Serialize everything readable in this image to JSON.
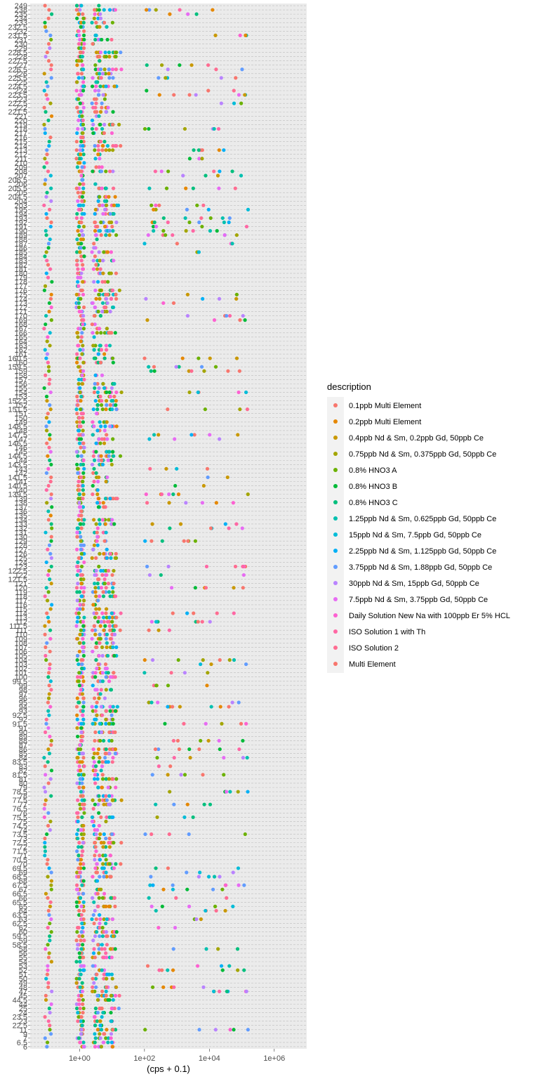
{
  "chart_data": {
    "type": "scatter",
    "xlabel": "(cps + 0.1)",
    "ylabel": "",
    "x_scale": "log10",
    "xlim": [
      0.03,
      10000000
    ],
    "x_ticks": [
      "1e+00",
      "1e+02",
      "1e+04",
      "1e+06"
    ],
    "grid": "dashed horizontal gridlines at each mass",
    "legend_title": "description",
    "legend_position": "right",
    "y_categories": [
      "6",
      "6.5",
      "7",
      "9",
      "11",
      "22.5",
      "23",
      "23.5",
      "24",
      "25",
      "44",
      "44.5",
      "45",
      "47",
      "48",
      "49",
      "50",
      "51",
      "52",
      "53",
      "54",
      "55",
      "56",
      "58",
      "58.5",
      "59",
      "59.5",
      "60",
      "62",
      "62.5",
      "63",
      "63.5",
      "64",
      "65",
      "65.5",
      "66",
      "66.5",
      "67",
      "67.5",
      "68",
      "68.5",
      "69",
      "69.5",
      "70",
      "70.5",
      "71",
      "71.5",
      "72",
      "72.5",
      "73",
      "73.5",
      "74",
      "74.5",
      "75",
      "75.5",
      "76",
      "76.5",
      "77",
      "77.5",
      "78",
      "78.5",
      "79",
      "80",
      "81",
      "81.5",
      "82",
      "83",
      "83.5",
      "84",
      "85",
      "86",
      "87",
      "88",
      "89",
      "90",
      "91",
      "91.5",
      "92",
      "92.5",
      "93",
      "94",
      "95",
      "96",
      "97",
      "98",
      "99",
      "99.5",
      "100",
      "101",
      "102",
      "103",
      "104",
      "105",
      "106",
      "107",
      "108",
      "109",
      "110",
      "111",
      "111.5",
      "112",
      "113",
      "114",
      "115",
      "116",
      "117",
      "118",
      "119",
      "120",
      "121",
      "121.5",
      "122",
      "122.5",
      "123",
      "124",
      "125",
      "126",
      "127",
      "128",
      "129",
      "130",
      "131",
      "132",
      "133",
      "134",
      "135",
      "136",
      "137",
      "138",
      "139",
      "139.5",
      "140",
      "140.5",
      "141",
      "141.5",
      "142",
      "143",
      "143.5",
      "144",
      "144.5",
      "145",
      "146",
      "146.5",
      "147",
      "147.5",
      "148",
      "148.5",
      "149",
      "150",
      "151",
      "151.5",
      "152",
      "152.5",
      "153",
      "154",
      "155",
      "156",
      "157",
      "158",
      "159",
      "159.5",
      "160",
      "160.5",
      "161",
      "162",
      "163",
      "164",
      "165",
      "166",
      "167",
      "168",
      "169",
      "170",
      "171",
      "172",
      "173",
      "174",
      "175",
      "176",
      "177",
      "178",
      "179",
      "180",
      "181",
      "182",
      "183",
      "184",
      "185",
      "186",
      "187",
      "188",
      "189",
      "190",
      "191",
      "192",
      "193",
      "194",
      "195",
      "203",
      "204",
      "204.5",
      "205",
      "205.5",
      "206",
      "206.5",
      "207",
      "208",
      "209",
      "210",
      "211",
      "212",
      "213",
      "214",
      "215",
      "216",
      "217",
      "218",
      "219",
      "220",
      "221",
      "221.5",
      "222",
      "222.5",
      "223",
      "223.5",
      "224",
      "224.5",
      "225",
      "225.5",
      "226",
      "226.5",
      "227",
      "227.5",
      "228",
      "228.5",
      "229",
      "230",
      "231",
      "231.5",
      "232",
      "232.5",
      "233",
      "234",
      "235",
      "238",
      "249"
    ],
    "y_tick_labels": [
      "6",
      "6.5",
      "7",
      "9",
      "11",
      "22.5",
      "23",
      "23.5",
      "24",
      "25",
      "44",
      "44.5",
      "45",
      "47",
      "48",
      "49",
      "50",
      "51",
      "52",
      "53",
      "54",
      "55",
      "56",
      "58",
      "58.5",
      "59",
      "59.5",
      "60",
      "62",
      "62.5",
      "63",
      "63.5",
      "64",
      "65",
      "65.5",
      "66",
      "66.5",
      "67",
      "67.5",
      "68",
      "68.5",
      "69",
      "69.5",
      "70",
      "70.5",
      "71",
      "71.5",
      "72",
      "72.5",
      "73",
      "73.5",
      "74",
      "74.5",
      "75",
      "75.5",
      "76",
      "76.5",
      "77",
      "77.5",
      "78",
      "78.5",
      "79",
      "80",
      "81",
      "81.5",
      "82",
      "83",
      "83.5",
      "84",
      "85",
      "86",
      "87",
      "88",
      "89",
      "90",
      "91",
      "91.5",
      "92",
      "92.5",
      "93",
      "94",
      "95",
      "96",
      "97",
      "98",
      "99",
      "99.5",
      "100",
      "101",
      "102",
      "103",
      "104",
      "105",
      "106",
      "107",
      "108",
      "109",
      "110",
      "111",
      "111.5",
      "112",
      "113",
      "114",
      "115",
      "116",
      "117",
      "118",
      "119",
      "120",
      "121",
      "121.5",
      "122",
      "122.5",
      "123",
      "124",
      "125",
      "126",
      "127",
      "128",
      "129",
      "130",
      "131",
      "132",
      "133",
      "134",
      "135",
      "136",
      "137",
      "138",
      "139",
      "139.5",
      "140",
      "140.5",
      "141",
      "141.5",
      "142",
      "143",
      "143.5",
      "144",
      "144.5",
      "145",
      "146",
      "146.5",
      "147",
      "147.5",
      "148",
      "148.5",
      "149",
      "150",
      "151",
      "151.5",
      "152",
      "152.5",
      "153",
      "154",
      "155",
      "156",
      "157",
      "158",
      "159",
      "159.5",
      "160",
      "160.5",
      "161",
      "162",
      "163",
      "164",
      "165",
      "166",
      "167",
      "168",
      "169",
      "170",
      "171",
      "172",
      "173",
      "174",
      "175",
      "176",
      "177",
      "178",
      "179",
      "180",
      "181",
      "182",
      "183",
      "184",
      "185",
      "186",
      "187",
      "188",
      "189",
      "190",
      "191",
      "192",
      "193",
      "194",
      "195",
      "203",
      "204",
      "204.5",
      "205",
      "205.5",
      "206",
      "206.5",
      "207",
      "208",
      "209",
      "210",
      "211",
      "212",
      "213",
      "214",
      "215",
      "216",
      "217",
      "218",
      "219",
      "220",
      "221",
      "221.5",
      "222",
      "222.5",
      "223",
      "223.5",
      "224",
      "224.5",
      "225",
      "225.5",
      "226",
      "226.5",
      "227",
      "227.5",
      "228",
      "228.5",
      "229",
      "230",
      "231",
      "231.5",
      "232",
      "232.5",
      "233",
      "234",
      "235",
      "238",
      "249"
    ],
    "series": [
      {
        "name": "0.1ppb Multi Element",
        "color": "#F8766D"
      },
      {
        "name": "0.2ppb Multi Element",
        "color": "#E58700"
      },
      {
        "name": "0.4ppb Nd & Sm, 0.2ppb Gd, 50ppb Ce",
        "color": "#C99800"
      },
      {
        "name": "0.75ppb Nd & Sm, 0.375ppb Gd, 50ppb Ce",
        "color": "#A3A500"
      },
      {
        "name": "0.8% HNO3 A",
        "color": "#6BB100"
      },
      {
        "name": "0.8% HNO3 B",
        "color": "#00BA38"
      },
      {
        "name": "0.8% HNO3 C",
        "color": "#00BF7D"
      },
      {
        "name": "1.25ppb Nd & Sm, 0.625ppb Gd, 50ppb Ce",
        "color": "#00C0AF"
      },
      {
        "name": "15ppb Nd & Sm, 7.5ppb Gd, 50ppb Ce",
        "color": "#00BCD8"
      },
      {
        "name": "2.25ppb Nd & Sm, 1.125ppb Gd, 50ppb Ce",
        "color": "#00B0F6"
      },
      {
        "name": "3.75ppb Nd & Sm, 1.88ppb Gd, 50ppb Ce",
        "color": "#619CFF"
      },
      {
        "name": "30ppb Nd & Sm, 15ppb Gd, 50ppb Ce",
        "color": "#B983FF"
      },
      {
        "name": "7.5ppb Nd & Sm, 3.75ppb Gd, 50ppb Ce",
        "color": "#E76BF3"
      },
      {
        "name": "Daily Solution New Na with 100ppb Er 5% HCL",
        "color": "#FD61D1"
      },
      {
        "name": "ISO Solution 1 with Th",
        "color": "#FF67A4"
      },
      {
        "name": "ISO Solution 2",
        "color": "#FF6C91"
      },
      {
        "name": "Multi Element",
        "color": "#F8766D"
      }
    ]
  }
}
